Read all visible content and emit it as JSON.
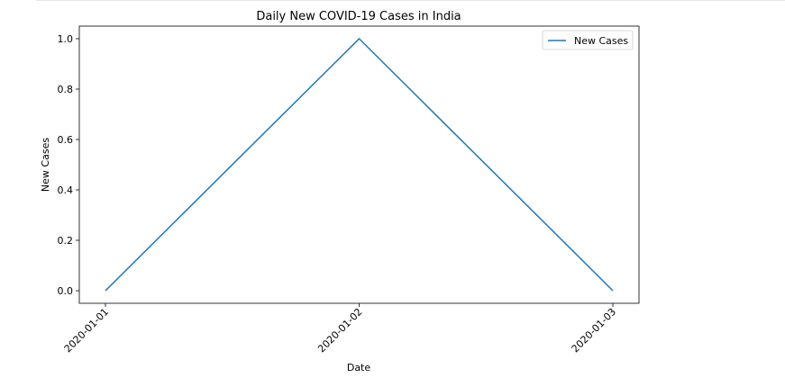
{
  "chart_data": {
    "type": "line",
    "title": "Daily New COVID-19 Cases in India",
    "xlabel": "Date",
    "ylabel": "New Cases",
    "categories": [
      "2020-01-01",
      "2020-01-02",
      "2020-01-03"
    ],
    "series": [
      {
        "name": "New Cases",
        "values": [
          0,
          1,
          0
        ],
        "color": "#1f77b4"
      }
    ],
    "yticks": [
      "0.0",
      "0.2",
      "0.4",
      "0.6",
      "0.8",
      "1.0"
    ],
    "ylim": [
      -0.05,
      1.05
    ],
    "legend": "top-right",
    "grid": false
  }
}
